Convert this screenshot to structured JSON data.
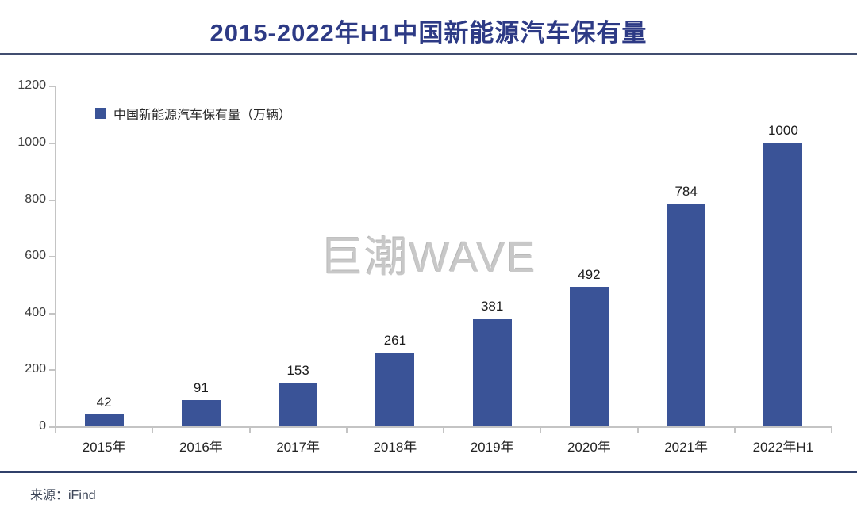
{
  "chart_data": {
    "type": "bar",
    "title": "2015-2022年H1中国新能源汽车保有量",
    "categories": [
      "2015年",
      "2016年",
      "2017年",
      "2018年",
      "2019年",
      "2020年",
      "2021年",
      "2022年H1"
    ],
    "series": [
      {
        "name": "中国新能源汽车保有量（万辆）",
        "values": [
          42,
          91,
          153,
          261,
          381,
          492,
          784,
          1000
        ]
      }
    ],
    "values": [
      42,
      91,
      153,
      261,
      381,
      492,
      784,
      1000
    ],
    "data_labels": [
      42,
      91,
      153,
      261,
      381,
      492,
      784,
      1000
    ],
    "xlabel": "",
    "ylabel": "",
    "ylim": [
      0,
      1200
    ],
    "yticks": [
      0,
      200,
      400,
      600,
      800,
      1000,
      1200
    ],
    "grid": false,
    "legend_position": "top-left",
    "legend": [
      "中国新能源汽车保有量（万辆）"
    ],
    "watermark": "巨潮WAVE",
    "source": "来源：iFind"
  },
  "colors": {
    "bar": "#3a5397",
    "title": "#2d3a85",
    "top_rule": "#414e70",
    "bottom_rule": "#30406a",
    "axis": "#c4c4c4",
    "watermark": "#c8c8c8",
    "source_text": "#3c4557"
  }
}
